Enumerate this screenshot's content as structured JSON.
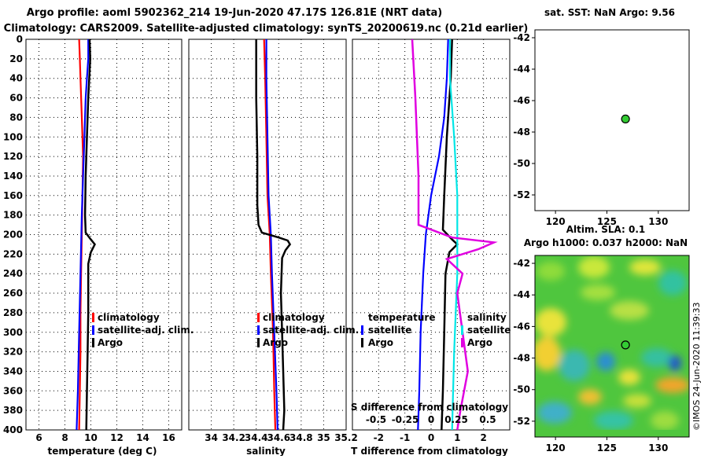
{
  "header": {
    "title_line1": "Argo profile: aoml 5902362_214 19-Jun-2020 47.17S 126.81E (NRT data)",
    "title_line2": "Climatology: CARS2009. Satellite-adjusted climatology: synTS_20200619.nc (0.21d earlier)"
  },
  "colors": {
    "climatology": "#ff0000",
    "satellite": "#0000ff",
    "argo": "#000000",
    "salinity_satellite": "#00e6e6",
    "salinity_argo": "#e000e0",
    "marker": "#33cc33"
  },
  "depth_axis": {
    "range": [
      0,
      400
    ],
    "ticks": [
      0,
      20,
      40,
      60,
      80,
      100,
      120,
      140,
      160,
      180,
      200,
      220,
      240,
      260,
      280,
      300,
      320,
      340,
      360,
      380,
      400
    ]
  },
  "chart_data": [
    {
      "type": "line",
      "title": "temperature profile",
      "xlabel": "temperature (deg C)",
      "xlim": [
        5,
        17
      ],
      "xticks": [
        6,
        8,
        10,
        12,
        14,
        16
      ],
      "ylim": [
        0,
        400
      ],
      "legend": {
        "position": "lower-right",
        "entries": [
          "climatology",
          "satellite-adj. clim.",
          "Argo"
        ]
      },
      "series": [
        {
          "name": "climatology",
          "color": "#ff0000",
          "points": [
            [
              9.1,
              0
            ],
            [
              9.15,
              20
            ],
            [
              9.2,
              40
            ],
            [
              9.3,
              80
            ],
            [
              9.4,
              120
            ],
            [
              9.35,
              160
            ],
            [
              9.3,
              200
            ],
            [
              9.25,
              240
            ],
            [
              9.2,
              280
            ],
            [
              9.2,
              320
            ],
            [
              9.15,
              360
            ],
            [
              9.1,
              400
            ]
          ]
        },
        {
          "name": "satellite-adj. clim.",
          "color": "#0000ff",
          "points": [
            [
              9.8,
              0
            ],
            [
              9.8,
              20
            ],
            [
              9.7,
              40
            ],
            [
              9.6,
              60
            ],
            [
              9.5,
              100
            ],
            [
              9.4,
              140
            ],
            [
              9.3,
              180
            ],
            [
              9.2,
              240
            ],
            [
              9.1,
              300
            ],
            [
              9.0,
              360
            ],
            [
              8.9,
              400
            ]
          ]
        },
        {
          "name": "Argo",
          "color": "#000000",
          "points": [
            [
              9.9,
              0
            ],
            [
              9.95,
              20
            ],
            [
              9.8,
              60
            ],
            [
              9.7,
              100
            ],
            [
              9.6,
              140
            ],
            [
              9.55,
              180
            ],
            [
              9.6,
              198
            ],
            [
              10.0,
              205
            ],
            [
              10.3,
              210
            ],
            [
              10.0,
              218
            ],
            [
              9.8,
              230
            ],
            [
              9.8,
              280
            ],
            [
              9.75,
              320
            ],
            [
              9.7,
              360
            ],
            [
              9.65,
              400
            ]
          ]
        }
      ]
    },
    {
      "type": "line",
      "title": "salinity profile",
      "xlabel": "salinity",
      "xlim": [
        33.8,
        35.2
      ],
      "xticks": [
        34,
        34.2,
        34.4,
        34.6,
        34.8,
        35,
        35.2
      ],
      "ylim": [
        0,
        400
      ],
      "legend": {
        "position": "lower-right",
        "entries": [
          "climatology",
          "satellite-adj. clim.",
          "Argo"
        ]
      },
      "series": [
        {
          "name": "climatology",
          "color": "#ff0000",
          "points": [
            [
              34.47,
              0
            ],
            [
              34.48,
              40
            ],
            [
              34.49,
              100
            ],
            [
              34.5,
              160
            ],
            [
              34.52,
              200
            ],
            [
              34.53,
              240
            ],
            [
              34.55,
              300
            ],
            [
              34.56,
              360
            ],
            [
              34.57,
              400
            ]
          ]
        },
        {
          "name": "satellite-adj. clim.",
          "color": "#0000ff",
          "points": [
            [
              34.49,
              0
            ],
            [
              34.49,
              40
            ],
            [
              34.5,
              100
            ],
            [
              34.51,
              160
            ],
            [
              34.53,
              200
            ],
            [
              34.54,
              240
            ],
            [
              34.56,
              300
            ],
            [
              34.58,
              360
            ],
            [
              34.59,
              400
            ]
          ]
        },
        {
          "name": "Argo",
          "color": "#000000",
          "points": [
            [
              34.4,
              0
            ],
            [
              34.4,
              60
            ],
            [
              34.41,
              120
            ],
            [
              34.41,
              170
            ],
            [
              34.42,
              190
            ],
            [
              34.45,
              198
            ],
            [
              34.6,
              203
            ],
            [
              34.68,
              206
            ],
            [
              34.7,
              210
            ],
            [
              34.66,
              216
            ],
            [
              34.63,
              224
            ],
            [
              34.62,
              260
            ],
            [
              34.63,
              300
            ],
            [
              34.64,
              340
            ],
            [
              34.65,
              380
            ],
            [
              34.64,
              400
            ]
          ]
        }
      ]
    },
    {
      "type": "line",
      "title": "difference from climatology",
      "xlabel": "T difference from climatology",
      "xlim": [
        -3,
        3
      ],
      "xticks": [
        -2,
        -1,
        0,
        1,
        2
      ],
      "secondary_label": "S difference from climatology",
      "secondary_ticks": [
        "-0.5",
        "-0.25",
        "0",
        "0.25",
        "0.5"
      ],
      "ylim": [
        0,
        400
      ],
      "legend_left": {
        "title": "temperature",
        "entries": [
          "satellite",
          "Argo"
        ]
      },
      "legend_right": {
        "title": "salinity",
        "entries": [
          "satellite",
          "Argo"
        ]
      },
      "series": [
        {
          "name": "temperature satellite",
          "color": "#0000ff",
          "points": [
            [
              0.65,
              0
            ],
            [
              0.6,
              40
            ],
            [
              0.5,
              80
            ],
            [
              0.3,
              120
            ],
            [
              0.0,
              160
            ],
            [
              -0.2,
              200
            ],
            [
              -0.3,
              240
            ],
            [
              -0.4,
              300
            ],
            [
              -0.45,
              360
            ],
            [
              -0.5,
              400
            ]
          ]
        },
        {
          "name": "temperature Argo",
          "color": "#000000",
          "points": [
            [
              0.8,
              0
            ],
            [
              0.75,
              40
            ],
            [
              0.6,
              100
            ],
            [
              0.5,
              160
            ],
            [
              0.45,
              195
            ],
            [
              0.8,
              205
            ],
            [
              1.0,
              210
            ],
            [
              0.7,
              218
            ],
            [
              0.55,
              240
            ],
            [
              0.5,
              300
            ],
            [
              0.45,
              360
            ],
            [
              0.4,
              400
            ]
          ]
        },
        {
          "name": "salinity satellite",
          "color": "#00e6e6",
          "points": [
            [
              0.18,
              0
            ],
            [
              0.18,
              40
            ],
            [
              0.22,
              100
            ],
            [
              0.25,
              160
            ],
            [
              0.25,
              240
            ],
            [
              0.22,
              320
            ],
            [
              0.2,
              400
            ]
          ]
        },
        {
          "name": "salinity Argo",
          "color": "#e000e0",
          "points": [
            [
              -0.18,
              0
            ],
            [
              -0.15,
              60
            ],
            [
              -0.12,
              140
            ],
            [
              -0.12,
              190
            ],
            [
              0.2,
              203
            ],
            [
              0.6,
              208
            ],
            [
              0.45,
              215
            ],
            [
              0.15,
              225
            ],
            [
              0.3,
              240
            ],
            [
              0.25,
              260
            ],
            [
              0.3,
              300
            ],
            [
              0.35,
              340
            ],
            [
              0.28,
              380
            ],
            [
              0.25,
              400
            ]
          ]
        }
      ]
    },
    {
      "type": "scatter",
      "title": "sat. SST: NaN Argo: 9.56",
      "xlim": [
        118,
        133
      ],
      "ylim": [
        -53,
        -41.5
      ],
      "xticks": [
        120,
        125,
        130
      ],
      "yticks": [
        -42,
        -44,
        -46,
        -48,
        -50,
        -52
      ],
      "points": [
        [
          126.81,
          -47.17
        ]
      ]
    },
    {
      "type": "heatmap",
      "title_line1": "Altim. SLA: 0.1",
      "title_line2": "Argo h1000: 0.037 h2000: NaN",
      "xlim": [
        118,
        133
      ],
      "ylim": [
        -53,
        -41.5
      ],
      "xticks": [
        120,
        125,
        130
      ],
      "yticks": [
        -42,
        -44,
        -46,
        -48,
        -50,
        -52
      ],
      "points": [
        [
          126.81,
          -47.17
        ]
      ],
      "watermark": "©IMOS 24-Jun-2020 11:39:33"
    }
  ]
}
